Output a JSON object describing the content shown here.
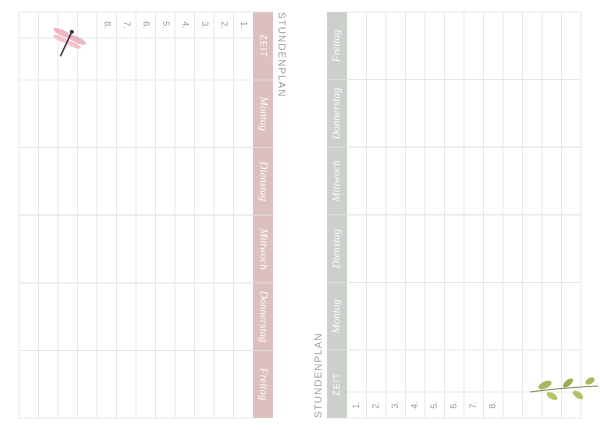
{
  "left": {
    "title": "STUNDENPLAN",
    "time_header": "ZEIT",
    "days": [
      "Montag",
      "Dienstag",
      "Mittwoch",
      "Donnerstag",
      "Freitag"
    ],
    "periods": [
      "1.",
      "2.",
      "3.",
      "4.",
      "5.",
      "6.",
      "7.",
      "8."
    ]
  },
  "right": {
    "title": "STUNDENPLAN",
    "time_header": "ZEIT",
    "days": [
      "Montag",
      "Dienstag",
      "Mittwoch",
      "Donnerstag",
      "Freitag"
    ],
    "periods": [
      "1.",
      "2.",
      "3.",
      "4.",
      "5.",
      "6.",
      "7.",
      "8."
    ]
  }
}
